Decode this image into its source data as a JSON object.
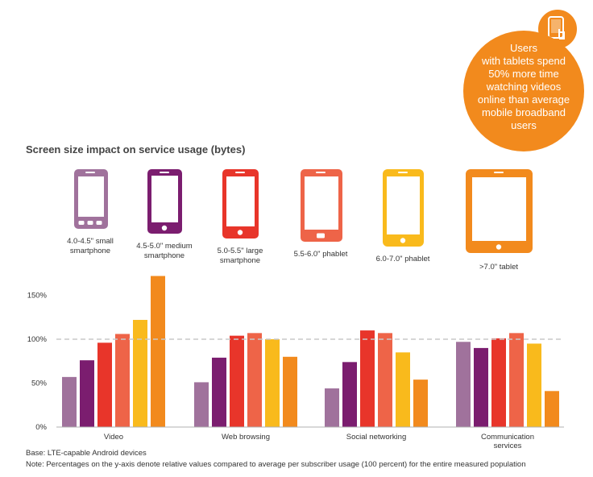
{
  "callout": {
    "lines": [
      "Users",
      "with tablets spend",
      "50% more time",
      "watching videos",
      "online than average",
      "mobile broadband",
      "users"
    ],
    "icon": "tablet-touch-icon"
  },
  "subtitle": "Screen size impact on service usage (bytes)",
  "devices": [
    {
      "label_lines": [
        "4.0-4.5\" small",
        "smartphone"
      ],
      "color": "#a0729c",
      "icon": "small-smartphone-icon"
    },
    {
      "label_lines": [
        "4.5-5.0\" medium",
        "smartphone"
      ],
      "color": "#7b1d6f",
      "icon": "medium-smartphone-icon"
    },
    {
      "label_lines": [
        "5.0-5.5\" large",
        "smartphone"
      ],
      "color": "#e8352a",
      "icon": "large-smartphone-icon"
    },
    {
      "label_lines": [
        "5.5-6.0\" phablet"
      ],
      "color": "#ee6448",
      "icon": "phablet-icon"
    },
    {
      "label_lines": [
        "6.0-7.0\" phablet"
      ],
      "color": "#f9ba1c",
      "icon": "large-phablet-icon"
    },
    {
      "label_lines": [
        ">7.0\" tablet"
      ],
      "color": "#f28a1d",
      "icon": "tablet-icon"
    }
  ],
  "chart_data": {
    "type": "bar",
    "categories": [
      "Video",
      "Web browsing",
      "Social networking",
      "Communication services"
    ],
    "category_label_lines": [
      [
        "Video"
      ],
      [
        "Web browsing"
      ],
      [
        "Social networking"
      ],
      [
        "Communication",
        "services"
      ]
    ],
    "series": [
      {
        "name": "4.0-4.5\" small smartphone",
        "color": "#a0729c",
        "values": [
          57,
          51,
          44,
          97
        ]
      },
      {
        "name": "4.5-5.0\" medium smartphone",
        "color": "#7b1d6f",
        "values": [
          76,
          79,
          74,
          90
        ]
      },
      {
        "name": "5.0-5.5\" large smartphone",
        "color": "#e8352a",
        "values": [
          96,
          104,
          110,
          101
        ]
      },
      {
        "name": "5.5-6.0\" phablet",
        "color": "#ee6448",
        "values": [
          106,
          107,
          107,
          107
        ]
      },
      {
        "name": "6.0-7.0\" phablet",
        "color": "#f9ba1c",
        "values": [
          122,
          100,
          85,
          95
        ]
      },
      {
        "name": ">7.0\" tablet",
        "color": "#f28a1d",
        "values": [
          172,
          80,
          54,
          41
        ]
      }
    ],
    "yticks": [
      "0%",
      "50%",
      "100%",
      "150%"
    ],
    "ytick_values": [
      0,
      50,
      100,
      150
    ],
    "ylim": [
      0,
      180
    ],
    "reference_line": 100,
    "grid": false
  },
  "footnotes": [
    "Base: LTE-capable Android devices",
    "Note: Percentages on the y-axis denote relative values compared to average per subscriber usage (100 percent) for the entire measured population"
  ]
}
